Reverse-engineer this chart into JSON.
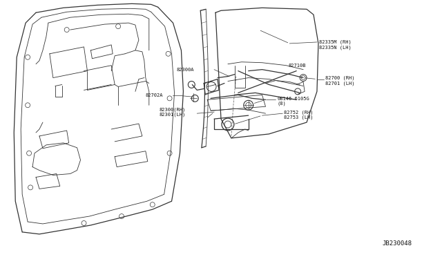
{
  "bg_color": "#ffffff",
  "fig_width": 6.4,
  "fig_height": 3.72,
  "dpi": 100,
  "line_color": "#333333",
  "label_color": "#111111",
  "font_size_labels": 5.0,
  "font_size_id": 6.5,
  "labels": {
    "82335M": "82335M (RH)\n82335N (LH)",
    "82300": "82300(RH)\n82301(LH)",
    "82300A": "82300A",
    "82710B": "82710B",
    "82700": "82700 (RH)\n82701 (LH)",
    "82702A": "82702A",
    "08146": "08146-6105G\n(8)",
    "82752": "82752 (RH)\n82753 (LH)",
    "diagram_id": "JB230048"
  }
}
